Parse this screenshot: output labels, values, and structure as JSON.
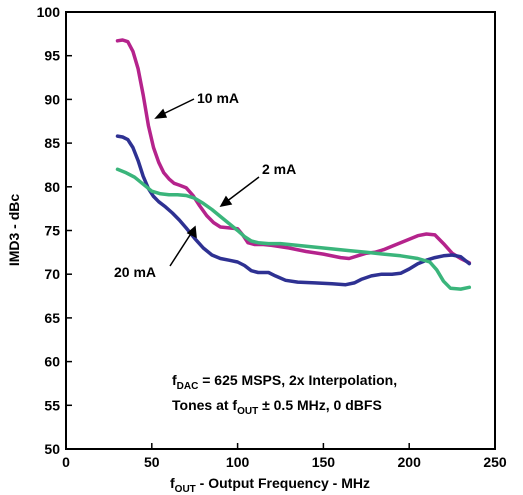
{
  "chart_data": {
    "type": "line",
    "xlabel": {
      "prefix": "f",
      "sub": "OUT",
      "rest": " - Output Frequency - MHz"
    },
    "ylabel": "IMD3 - dBc",
    "xlim": [
      0,
      250
    ],
    "ylim": [
      50,
      100
    ],
    "x_ticks": [
      0,
      50,
      100,
      150,
      200,
      250
    ],
    "y_ticks": [
      50,
      55,
      60,
      65,
      70,
      75,
      80,
      85,
      90,
      95,
      100
    ],
    "grid": false,
    "series": [
      {
        "name": "10 mA",
        "color": "#b5238c",
        "points": [
          [
            30,
            96.7
          ],
          [
            33,
            96.8
          ],
          [
            36,
            96.6
          ],
          [
            39,
            95.5
          ],
          [
            42,
            93.5
          ],
          [
            45,
            90.5
          ],
          [
            48,
            87.0
          ],
          [
            51,
            84.5
          ],
          [
            54,
            82.8
          ],
          [
            57,
            81.6
          ],
          [
            60,
            80.9
          ],
          [
            63,
            80.4
          ],
          [
            66,
            80.2
          ],
          [
            70,
            79.9
          ],
          [
            74,
            79.0
          ],
          [
            78,
            77.8
          ],
          [
            82,
            76.7
          ],
          [
            86,
            75.9
          ],
          [
            90,
            75.4
          ],
          [
            95,
            75.3
          ],
          [
            100,
            75.2
          ],
          [
            103,
            74.5
          ],
          [
            106,
            73.6
          ],
          [
            110,
            73.4
          ],
          [
            115,
            73.4
          ],
          [
            120,
            73.3
          ],
          [
            130,
            73.0
          ],
          [
            140,
            72.6
          ],
          [
            150,
            72.3
          ],
          [
            160,
            71.9
          ],
          [
            165,
            71.8
          ],
          [
            170,
            72.1
          ],
          [
            175,
            72.4
          ],
          [
            180,
            72.5
          ],
          [
            185,
            72.8
          ],
          [
            190,
            73.2
          ],
          [
            195,
            73.6
          ],
          [
            200,
            74.0
          ],
          [
            205,
            74.4
          ],
          [
            210,
            74.6
          ],
          [
            215,
            74.5
          ],
          [
            220,
            73.5
          ],
          [
            225,
            72.4
          ],
          [
            230,
            71.8
          ],
          [
            235,
            71.3
          ]
        ]
      },
      {
        "name": "20 mA",
        "color": "#2e3192",
        "points": [
          [
            30,
            85.8
          ],
          [
            33,
            85.7
          ],
          [
            36,
            85.4
          ],
          [
            39,
            84.5
          ],
          [
            42,
            83.0
          ],
          [
            45,
            81.2
          ],
          [
            48,
            79.8
          ],
          [
            51,
            78.9
          ],
          [
            54,
            78.3
          ],
          [
            58,
            77.7
          ],
          [
            62,
            77.0
          ],
          [
            66,
            76.2
          ],
          [
            70,
            75.3
          ],
          [
            75,
            74.1
          ],
          [
            80,
            73.0
          ],
          [
            85,
            72.2
          ],
          [
            90,
            71.8
          ],
          [
            95,
            71.6
          ],
          [
            100,
            71.4
          ],
          [
            104,
            71.0
          ],
          [
            108,
            70.4
          ],
          [
            112,
            70.2
          ],
          [
            118,
            70.2
          ],
          [
            122,
            69.8
          ],
          [
            128,
            69.3
          ],
          [
            135,
            69.1
          ],
          [
            145,
            69.0
          ],
          [
            155,
            68.9
          ],
          [
            163,
            68.8
          ],
          [
            168,
            69.0
          ],
          [
            172,
            69.4
          ],
          [
            178,
            69.8
          ],
          [
            184,
            70.0
          ],
          [
            190,
            70.0
          ],
          [
            195,
            70.1
          ],
          [
            200,
            70.6
          ],
          [
            205,
            71.2
          ],
          [
            210,
            71.6
          ],
          [
            215,
            71.9
          ],
          [
            220,
            72.1
          ],
          [
            225,
            72.2
          ],
          [
            230,
            72.0
          ],
          [
            235,
            71.2
          ]
        ]
      },
      {
        "name": "2 mA",
        "color": "#3ab57b",
        "points": [
          [
            30,
            82.0
          ],
          [
            35,
            81.6
          ],
          [
            40,
            81.1
          ],
          [
            45,
            80.3
          ],
          [
            50,
            79.5
          ],
          [
            55,
            79.2
          ],
          [
            60,
            79.1
          ],
          [
            65,
            79.1
          ],
          [
            70,
            79.0
          ],
          [
            75,
            78.7
          ],
          [
            80,
            78.1
          ],
          [
            85,
            77.4
          ],
          [
            90,
            76.6
          ],
          [
            95,
            75.8
          ],
          [
            100,
            75.0
          ],
          [
            104,
            74.3
          ],
          [
            108,
            73.8
          ],
          [
            112,
            73.6
          ],
          [
            118,
            73.5
          ],
          [
            125,
            73.5
          ],
          [
            135,
            73.3
          ],
          [
            145,
            73.1
          ],
          [
            155,
            72.9
          ],
          [
            165,
            72.7
          ],
          [
            175,
            72.5
          ],
          [
            185,
            72.3
          ],
          [
            195,
            72.1
          ],
          [
            205,
            71.8
          ],
          [
            212,
            71.4
          ],
          [
            216,
            70.5
          ],
          [
            220,
            69.2
          ],
          [
            224,
            68.4
          ],
          [
            230,
            68.3
          ],
          [
            235,
            68.5
          ]
        ]
      }
    ],
    "annotations": [
      {
        "text": "10 mA",
        "series": "10 mA"
      },
      {
        "text": "2 mA",
        "series": "2 mA"
      },
      {
        "text": "20 mA",
        "series": "20 mA"
      }
    ],
    "note": {
      "line1": {
        "prefix": "f",
        "sub": "DAC",
        "rest": " = 625 MSPS, 2x Interpolation,"
      },
      "line2": {
        "prefix": "Tones at f",
        "sub": "OUT",
        "rest": " ± 0.5 MHz, 0 dBFS"
      }
    }
  }
}
